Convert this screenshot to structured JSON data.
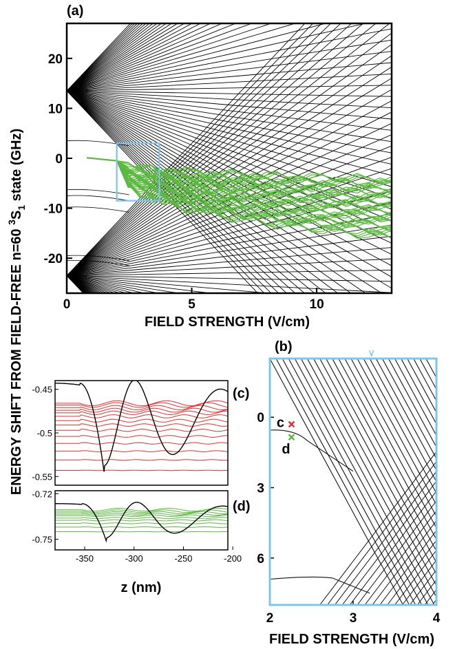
{
  "y_axis_label_main": "ENERGY SHIFT FROM FIELD-FREE n=60 ",
  "y_axis_label_sup": "3",
  "y_axis_label_S": "S",
  "y_axis_label_sub": "1",
  "y_axis_label_tail": " state (GHz)",
  "colors": {
    "manifold": "#000000",
    "state_c": "#e03030",
    "state_d": "#5cb840",
    "zoom_box": "#7ec4ec"
  },
  "chart_data": [
    {
      "id": "a",
      "panel_label": "(a)",
      "type": "line",
      "xlabel": "FIELD STRENGTH (V/cm)",
      "xlim": [
        0,
        13
      ],
      "ylim": [
        -27,
        27
      ],
      "xticks": [
        "0",
        "5",
        "10"
      ],
      "xtick_values": [
        0,
        5,
        10
      ],
      "yticks": [
        "20",
        "10",
        "0",
        "-10",
        "-20"
      ],
      "ytick_values": [
        20,
        10,
        0,
        -10,
        -20
      ],
      "manifolds": [
        {
          "zero_field_energy": 13.5,
          "start_energy_range": [
            -14,
            27
          ]
        },
        {
          "zero_field_energy": -23.5,
          "start_energy_range": [
            -27,
            4
          ]
        }
      ],
      "highlight": {
        "name": "",
        "zero_field_energy": 0.1,
        "avoided_crossing_start": 2.0,
        "spread_at_max_field": [
          -16,
          -4
        ]
      },
      "zoom_box": {
        "x_range": [
          2,
          3.7
        ],
        "y_range": [
          -8.5,
          3
        ]
      }
    },
    {
      "id": "b",
      "panel_label": "(b)",
      "type": "line",
      "xlabel": "FIELD STRENGTH (V/cm)",
      "xlim": [
        2,
        4
      ],
      "ylim": [
        8,
        -2.5
      ],
      "xticks": [
        "2",
        "3",
        "4"
      ],
      "xtick_values": [
        2,
        3,
        4
      ],
      "yticks": [
        "0",
        "3",
        "6"
      ],
      "ytick_values": [
        0,
        3,
        6
      ],
      "markers": [
        {
          "label": "c",
          "x": 2.26,
          "y": 0.3,
          "color": "#e03030"
        },
        {
          "label": "d",
          "x": 2.26,
          "y": 0.85,
          "color": "#5cb840"
        }
      ],
      "top_marker_x": 3.22
    },
    {
      "id": "c",
      "panel_label": "(c)",
      "type": "line",
      "xlim": [
        -380,
        -205
      ],
      "ylim": [
        -0.56,
        -0.44
      ],
      "yticks": [
        "-0.45",
        "-0.5",
        "-0.55"
      ],
      "ytick_values": [
        -0.45,
        -0.5,
        -0.55
      ],
      "levels": [
        -0.466,
        -0.468,
        -0.471,
        -0.474,
        -0.477,
        -0.481,
        -0.486,
        -0.491,
        -0.497,
        -0.504,
        -0.512,
        -0.521,
        -0.531,
        -0.543
      ],
      "wavefunction": {
        "well_min_z": -330,
        "min_value": -0.548,
        "asymptote": -0.443,
        "peak": -0.443
      }
    },
    {
      "id": "d",
      "panel_label": "(d)",
      "type": "line",
      "xlabel": "z (nm)",
      "xlim": [
        -380,
        -205
      ],
      "ylim": [
        -0.757,
        -0.718
      ],
      "xticks": [
        "-350",
        "-300",
        "-250",
        "-200"
      ],
      "xtick_values": [
        -350,
        -300,
        -250,
        -200
      ],
      "yticks": [
        "-0.72",
        "-0.75"
      ],
      "ytick_values": [
        -0.72,
        -0.75
      ],
      "levels": [
        -0.7305,
        -0.7315,
        -0.7325,
        -0.7335,
        -0.7345,
        -0.736,
        -0.7375,
        -0.7395,
        -0.742,
        -0.745
      ],
      "wavefunction": {
        "well_min_z": -328,
        "min_value": -0.7515,
        "asymptote": -0.7265,
        "peak": -0.7265
      }
    }
  ]
}
